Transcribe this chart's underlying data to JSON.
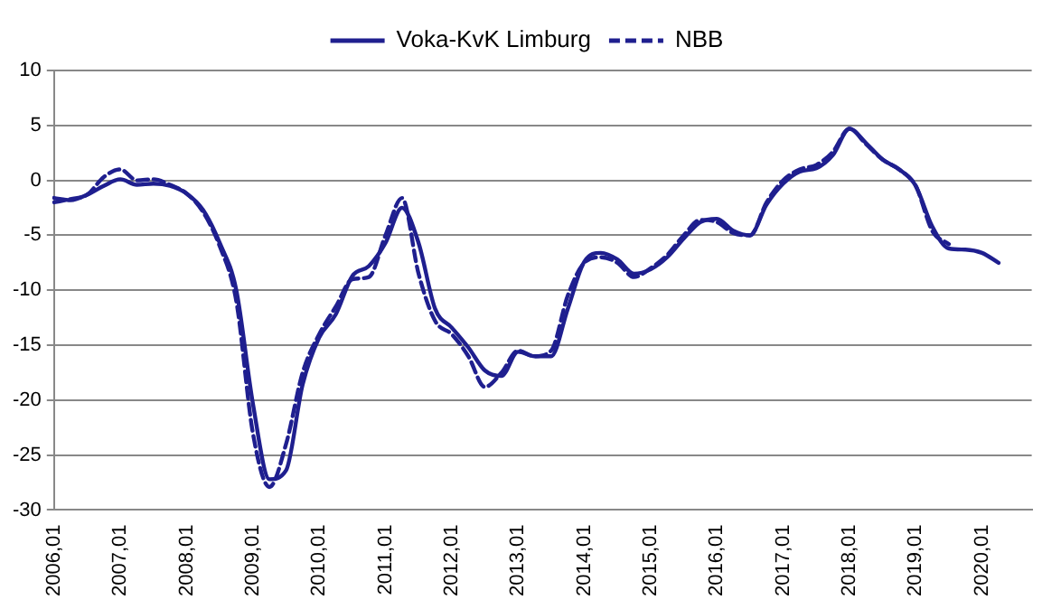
{
  "chart_data": {
    "type": "line",
    "categories": [
      "2006,01",
      null,
      null,
      null,
      "2007,01",
      null,
      null,
      null,
      "2008,01",
      null,
      null,
      null,
      "2009,01",
      null,
      null,
      null,
      "2010,01",
      null,
      null,
      null,
      "2011,01",
      null,
      null,
      null,
      "2012,01",
      null,
      null,
      null,
      "2013,01",
      null,
      null,
      null,
      "2014,01",
      null,
      null,
      null,
      "2015,01",
      null,
      null,
      null,
      "2016,01",
      null,
      null,
      null,
      "2017,01",
      null,
      null,
      null,
      "2018,01",
      null,
      null,
      null,
      "2019,01",
      null,
      null,
      null,
      "2020,01",
      null,
      null,
      null
    ],
    "series": [
      {
        "name": "Voka-KvK Limburg",
        "color": "#1f1f8f",
        "line_style": "solid",
        "values": [
          -1.6,
          -1.8,
          -1.3,
          -0.5,
          0.1,
          -0.4,
          -0.3,
          -0.5,
          -1.2,
          -2.7,
          -5.7,
          -10,
          -20.3,
          -27.2,
          -26.4,
          -18.6,
          -14.3,
          -12.2,
          -8.7,
          -7.8,
          -5.7,
          -2.5,
          -5.7,
          -11.7,
          -13.4,
          -15.2,
          -17.3,
          -17.8,
          -15.6,
          -16,
          -16,
          -11.7,
          -7.4,
          -6.6,
          -7.2,
          -8.5,
          -8.1,
          -7,
          -5.3,
          -3.8,
          -3.5,
          -4.6,
          -5,
          -2.2,
          -0.3,
          0.8,
          1.1,
          2.3,
          4.7,
          3.4,
          1.9,
          1,
          -0.5,
          -4.2,
          -6.2,
          -6.3,
          -6.6,
          -7.5,
          null,
          null
        ]
      },
      {
        "name": "NBB",
        "color": "#1f1f8f",
        "line_style": "dashed",
        "values": [
          -2,
          -1.7,
          -1.3,
          0.3,
          1,
          0,
          0.1,
          -0.4,
          -1.2,
          -2.9,
          -6,
          -11,
          -23,
          -27.9,
          -24,
          -17.5,
          -14,
          -11.5,
          -9,
          -8.8,
          -5,
          -1.6,
          -8.5,
          -12.8,
          -14,
          -16,
          -18.8,
          -17.5,
          -15.5,
          -16,
          -15.5,
          -10.5,
          -7.5,
          -7,
          -7.5,
          -8.8,
          -8,
          -6.8,
          -5,
          -3.6,
          -3.8,
          -4.8,
          -5,
          -2,
          0,
          1,
          1.4,
          2.6,
          4.7,
          3.3,
          1.9,
          1,
          -0.5,
          -4.6,
          -5.8,
          null,
          null,
          null,
          null,
          null
        ]
      }
    ],
    "ylim": [
      -30,
      10
    ],
    "yticks": [
      -30,
      -25,
      -20,
      -15,
      -10,
      -5,
      0,
      5,
      10
    ],
    "grid": "y",
    "legend": "top",
    "marker": "none"
  }
}
